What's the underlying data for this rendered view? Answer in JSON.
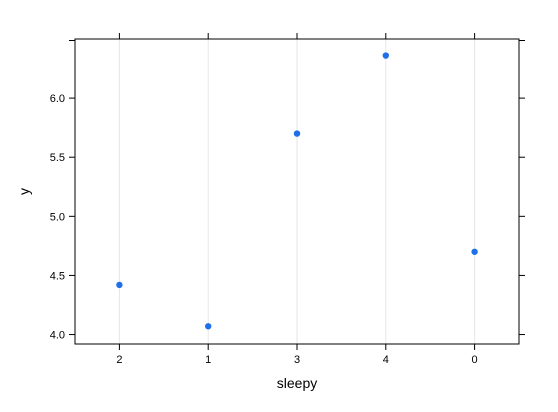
{
  "chart_data": {
    "type": "scatter",
    "xlabel": "sleepy",
    "ylabel": "y",
    "categories": [
      "2",
      "1",
      "3",
      "4",
      "0"
    ],
    "series": [
      {
        "values": [
          4.42,
          4.07,
          5.7,
          6.36,
          4.7
        ]
      }
    ],
    "y_ticks": [
      4.0,
      4.5,
      5.0,
      5.5,
      6.0
    ],
    "y_tick_labels": [
      "4.0",
      "4.5",
      "5.0",
      "5.5",
      "6.0"
    ],
    "ylim": [
      3.92,
      6.5
    ],
    "grid": "vertical",
    "legend": "none",
    "colors": {
      "point": "#1F6FE8",
      "frame": "#000000",
      "grid": "#E6E6E6"
    }
  }
}
